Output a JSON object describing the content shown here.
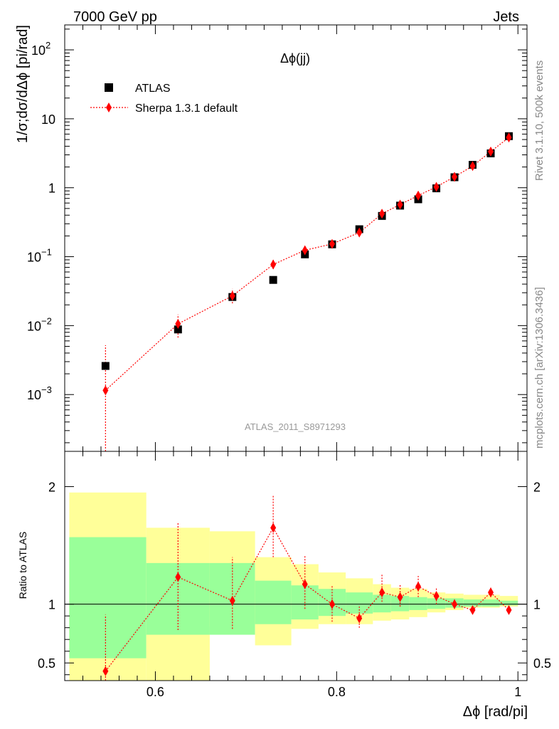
{
  "header": {
    "left": "7000 GeV pp",
    "right": "Jets"
  },
  "side_text": {
    "top": "Rivet 3.1.10,  500k events",
    "bottom": "mcplots.cern.ch [arXiv:1306.3436]"
  },
  "watermark": "ATLAS_2011_S8971293",
  "colors": {
    "data": "#000000",
    "mc": "#ff0000",
    "band_inner": "#99ff99",
    "band_outer": "#ffff99"
  },
  "chart_data": [
    {
      "type": "scatter",
      "title": "Δϕ(jj)",
      "ylabel": "1/σ;dσ/dΔϕ [pi/rad]",
      "yscale": "log",
      "ylim": [
        0.00015,
        230
      ],
      "xlim": [
        0.5,
        1.01
      ],
      "y_ticks": [
        "10^-3",
        "10^-2",
        "10^-1",
        "1",
        "10",
        "10^2"
      ],
      "legend_position": "top-left",
      "series": [
        {
          "name": "ATLAS",
          "marker": "square",
          "color": "#000000",
          "x": [
            0.545,
            0.625,
            0.685,
            0.73,
            0.765,
            0.795,
            0.825,
            0.85,
            0.87,
            0.89,
            0.91,
            0.93,
            0.95,
            0.97,
            0.99
          ],
          "y": [
            0.0026,
            0.0088,
            0.026,
            0.046,
            0.108,
            0.151,
            0.25,
            0.39,
            0.55,
            0.68,
            0.98,
            1.42,
            2.15,
            3.15,
            5.6
          ]
        },
        {
          "name": "Sherpa 1.3.1 default",
          "marker": "diamond",
          "line": "dotted",
          "color": "#ff0000",
          "x": [
            0.545,
            0.625,
            0.685,
            0.73,
            0.765,
            0.795,
            0.825,
            0.85,
            0.87,
            0.89,
            0.91,
            0.93,
            0.95,
            0.97,
            0.99
          ],
          "y": [
            0.00115,
            0.0106,
            0.027,
            0.077,
            0.124,
            0.153,
            0.224,
            0.42,
            0.57,
            0.77,
            1.03,
            1.44,
            2.06,
            3.35,
            5.35
          ],
          "ylo": [
            0.00015,
            0.0067,
            0.021,
            0.066,
            0.105,
            0.137,
            0.196,
            0.38,
            0.52,
            0.71,
            0.97,
            1.37,
            1.97,
            3.2,
            5.15
          ],
          "yhi": [
            0.0052,
            0.0145,
            0.034,
            0.09,
            0.14,
            0.17,
            0.25,
            0.46,
            0.62,
            0.83,
            1.09,
            1.51,
            2.16,
            3.5,
            5.55
          ]
        }
      ]
    },
    {
      "type": "scatter",
      "ylabel": "Ratio to ATLAS",
      "xlabel": "Δϕ [rad/pi]",
      "ylim": [
        0.35,
        2.3
      ],
      "xlim": [
        0.5,
        1.01
      ],
      "x_ticks": [
        0.6,
        0.8,
        1.0
      ],
      "y_ticks": [
        0.5,
        1,
        2
      ],
      "reference_line": 1,
      "bands": {
        "edges": [
          0.505,
          0.59,
          0.66,
          0.71,
          0.75,
          0.78,
          0.81,
          0.84,
          0.86,
          0.88,
          0.9,
          0.92,
          0.94,
          0.96,
          0.98,
          1.0
        ],
        "outer_lo": [
          0.35,
          0.35,
          0.81,
          0.65,
          0.79,
          0.83,
          0.83,
          0.86,
          0.87,
          0.89,
          0.93,
          0.95,
          0.97,
          0.97,
          0.98
        ],
        "outer_hi": [
          1.95,
          1.65,
          1.62,
          1.4,
          1.34,
          1.27,
          1.22,
          1.17,
          1.14,
          1.13,
          1.1,
          1.09,
          1.08,
          1.08,
          1.07
        ],
        "inner_lo": [
          0.54,
          0.74,
          0.74,
          0.83,
          0.87,
          0.9,
          0.92,
          0.93,
          0.94,
          0.95,
          0.96,
          0.97,
          0.98,
          0.98,
          0.99
        ],
        "inner_hi": [
          1.57,
          1.35,
          1.35,
          1.2,
          1.16,
          1.13,
          1.1,
          1.08,
          1.07,
          1.06,
          1.05,
          1.05,
          1.04,
          1.04,
          1.03
        ]
      },
      "series": [
        {
          "name": "Sherpa 1.3.1 default",
          "marker": "diamond",
          "line": "dotted",
          "color": "#ff0000",
          "x": [
            0.545,
            0.625,
            0.685,
            0.73,
            0.765,
            0.795,
            0.825,
            0.85,
            0.87,
            0.89,
            0.91,
            0.93,
            0.95,
            0.97,
            0.99
          ],
          "y": [
            0.43,
            1.23,
            1.03,
            1.65,
            1.17,
            1.0,
            0.88,
            1.1,
            1.06,
            1.15,
            1.07,
            1.0,
            0.95,
            1.1,
            0.95
          ],
          "ylo": [
            0.35,
            0.78,
            0.79,
            1.4,
            0.96,
            0.85,
            0.8,
            1.02,
            0.98,
            1.06,
            1.0,
            0.96,
            0.92,
            1.06,
            0.93
          ],
          "yhi": [
            0.91,
            1.7,
            1.4,
            1.93,
            1.41,
            1.16,
            0.98,
            1.26,
            1.17,
            1.24,
            1.14,
            1.04,
            0.98,
            1.14,
            0.98
          ]
        }
      ]
    }
  ]
}
